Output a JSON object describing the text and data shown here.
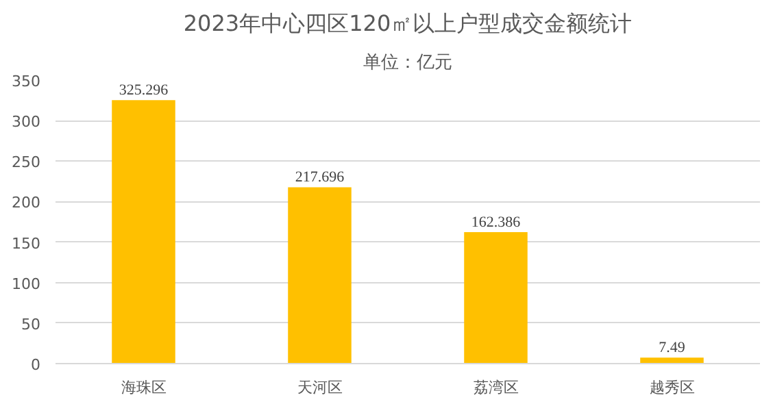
{
  "chart_data": {
    "type": "bar",
    "title": "2023年中心四区120㎡以上户型成交金额统计",
    "subtitle": "单位：亿元",
    "categories": [
      "海珠区",
      "天河区",
      "荔湾区",
      "越秀区"
    ],
    "values": [
      325.296,
      217.696,
      162.386,
      7.49
    ],
    "color": "#ffc000",
    "ylim": [
      0,
      350
    ],
    "yticks": [
      0,
      50,
      100,
      150,
      200,
      250,
      300,
      350
    ],
    "grid": "y",
    "data_labels": true
  }
}
